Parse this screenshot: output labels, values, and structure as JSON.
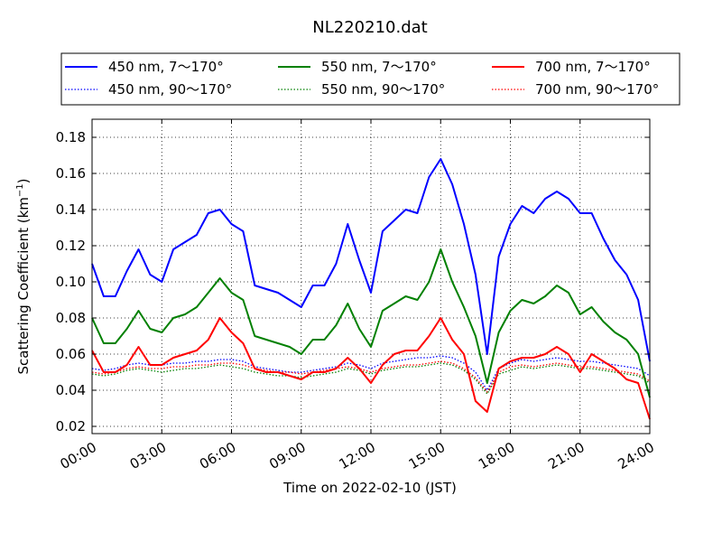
{
  "chart_data": {
    "type": "line",
    "title": "NL220210.dat",
    "xlabel": "Time on 2022-02-10 (JST)",
    "ylabel": "Scattering Coefficient (km",
    "ylabel_sup": "−1",
    "ylabel_end": ")",
    "xlim": [
      "00:00",
      "24:00"
    ],
    "ylim": [
      0.016,
      0.19
    ],
    "x_ticks": [
      "00:00",
      "03:00",
      "06:00",
      "09:00",
      "12:00",
      "15:00",
      "18:00",
      "21:00",
      "24:00"
    ],
    "y_ticks": [
      "0.02",
      "0.04",
      "0.06",
      "0.08",
      "0.10",
      "0.12",
      "0.14",
      "0.16",
      "0.18"
    ],
    "grid": true,
    "legend_position": "top",
    "x": [
      "00:00",
      "00:30",
      "01:00",
      "01:30",
      "02:00",
      "02:30",
      "03:00",
      "03:30",
      "04:00",
      "04:30",
      "05:00",
      "05:30",
      "06:00",
      "06:30",
      "07:00",
      "07:30",
      "08:00",
      "08:30",
      "09:00",
      "09:30",
      "10:00",
      "10:30",
      "11:00",
      "11:30",
      "12:00",
      "12:30",
      "13:00",
      "13:30",
      "14:00",
      "14:30",
      "15:00",
      "15:30",
      "16:00",
      "16:30",
      "17:00",
      "17:30",
      "18:00",
      "18:30",
      "19:00",
      "19:30",
      "20:00",
      "20:30",
      "21:00",
      "21:30",
      "22:00",
      "22:30",
      "23:00",
      "23:30",
      "24:00"
    ],
    "series": [
      {
        "name": "450 nm, 7～170°",
        "color": "#0000ff",
        "style": "solid",
        "values": [
          0.11,
          0.092,
          0.092,
          0.106,
          0.118,
          0.104,
          0.1,
          0.118,
          0.122,
          0.126,
          0.138,
          0.14,
          0.132,
          0.128,
          0.098,
          0.096,
          0.094,
          0.09,
          0.086,
          0.098,
          0.098,
          0.11,
          0.132,
          0.112,
          0.094,
          0.128,
          0.134,
          0.14,
          0.138,
          0.158,
          0.168,
          0.154,
          0.132,
          0.104,
          0.06,
          0.114,
          0.132,
          0.142,
          0.138,
          0.146,
          0.15,
          0.146,
          0.138,
          0.138,
          0.124,
          0.112,
          0.104,
          0.09,
          0.056
        ]
      },
      {
        "name": "450 nm, 90～170°",
        "color": "#0000ff",
        "style": "dotted",
        "values": [
          0.052,
          0.051,
          0.052,
          0.054,
          0.055,
          0.054,
          0.054,
          0.055,
          0.055,
          0.056,
          0.056,
          0.057,
          0.057,
          0.056,
          0.053,
          0.052,
          0.051,
          0.05,
          0.05,
          0.051,
          0.052,
          0.053,
          0.055,
          0.054,
          0.052,
          0.055,
          0.056,
          0.057,
          0.058,
          0.058,
          0.059,
          0.058,
          0.055,
          0.05,
          0.04,
          0.052,
          0.055,
          0.057,
          0.056,
          0.057,
          0.058,
          0.057,
          0.056,
          0.056,
          0.055,
          0.054,
          0.053,
          0.052,
          0.048
        ]
      },
      {
        "name": "550 nm, 7～170°",
        "color": "#008000",
        "style": "solid",
        "values": [
          0.08,
          0.066,
          0.066,
          0.074,
          0.084,
          0.074,
          0.072,
          0.08,
          0.082,
          0.086,
          0.094,
          0.102,
          0.094,
          0.09,
          0.07,
          0.068,
          0.066,
          0.064,
          0.06,
          0.068,
          0.068,
          0.076,
          0.088,
          0.074,
          0.064,
          0.084,
          0.088,
          0.092,
          0.09,
          0.1,
          0.118,
          0.1,
          0.086,
          0.07,
          0.044,
          0.072,
          0.084,
          0.09,
          0.088,
          0.092,
          0.098,
          0.094,
          0.082,
          0.086,
          0.078,
          0.072,
          0.068,
          0.06,
          0.036
        ]
      },
      {
        "name": "550 nm, 90～170°",
        "color": "#008000",
        "style": "dotted",
        "values": [
          0.049,
          0.048,
          0.049,
          0.051,
          0.052,
          0.051,
          0.05,
          0.051,
          0.052,
          0.052,
          0.053,
          0.054,
          0.053,
          0.052,
          0.05,
          0.049,
          0.048,
          0.048,
          0.047,
          0.048,
          0.049,
          0.05,
          0.052,
          0.051,
          0.049,
          0.051,
          0.052,
          0.053,
          0.053,
          0.054,
          0.055,
          0.054,
          0.051,
          0.046,
          0.038,
          0.049,
          0.051,
          0.053,
          0.052,
          0.053,
          0.054,
          0.053,
          0.052,
          0.052,
          0.051,
          0.05,
          0.049,
          0.048,
          0.044
        ]
      },
      {
        "name": "700 nm, 7～170°",
        "color": "#ff0000",
        "style": "solid",
        "values": [
          0.062,
          0.05,
          0.05,
          0.054,
          0.064,
          0.054,
          0.054,
          0.058,
          0.06,
          0.062,
          0.068,
          0.08,
          0.072,
          0.066,
          0.052,
          0.05,
          0.05,
          0.048,
          0.046,
          0.05,
          0.05,
          0.052,
          0.058,
          0.052,
          0.044,
          0.054,
          0.06,
          0.062,
          0.062,
          0.07,
          0.08,
          0.068,
          0.06,
          0.034,
          0.028,
          0.052,
          0.056,
          0.058,
          0.058,
          0.06,
          0.064,
          0.06,
          0.05,
          0.06,
          0.056,
          0.052,
          0.046,
          0.044,
          0.024
        ]
      },
      {
        "name": "700 nm, 90～170°",
        "color": "#ff0000",
        "style": "dotted",
        "values": [
          0.05,
          0.049,
          0.05,
          0.052,
          0.053,
          0.052,
          0.052,
          0.053,
          0.053,
          0.054,
          0.054,
          0.055,
          0.055,
          0.054,
          0.052,
          0.051,
          0.05,
          0.05,
          0.049,
          0.05,
          0.051,
          0.052,
          0.053,
          0.052,
          0.05,
          0.052,
          0.053,
          0.054,
          0.054,
          0.055,
          0.056,
          0.055,
          0.052,
          0.047,
          0.039,
          0.05,
          0.053,
          0.054,
          0.053,
          0.054,
          0.055,
          0.054,
          0.053,
          0.053,
          0.052,
          0.051,
          0.05,
          0.049,
          0.045
        ]
      }
    ]
  }
}
